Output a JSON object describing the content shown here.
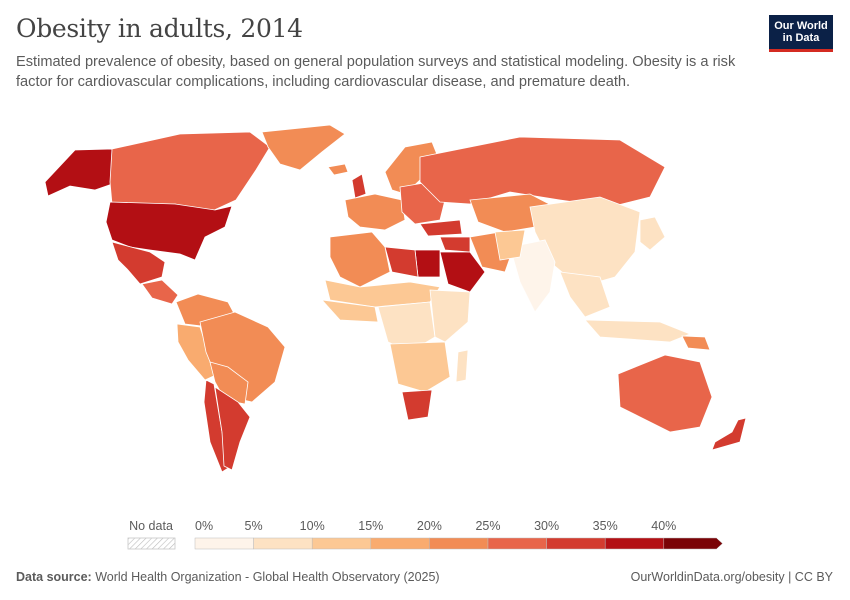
{
  "header": {
    "title": "Obesity in adults, 2014",
    "subtitle": "Estimated prevalence of obesity, based on general population surveys and statistical modeling. Obesity is a risk factor for cardiovascular complications, including cardiovascular disease, and premature death."
  },
  "logo": {
    "line1": "Our World",
    "line2": "in Data"
  },
  "legend": {
    "no_data_label": "No data",
    "ticks": [
      "0%",
      "5%",
      "10%",
      "15%",
      "20%",
      "25%",
      "30%",
      "35%",
      "40%"
    ],
    "bins": [
      {
        "from": 0,
        "to": 5,
        "color": "#fef4ea"
      },
      {
        "from": 5,
        "to": 10,
        "color": "#fde2c3"
      },
      {
        "from": 10,
        "to": 15,
        "color": "#fcc894"
      },
      {
        "from": 15,
        "to": 20,
        "color": "#f9ab6f"
      },
      {
        "from": 20,
        "to": 25,
        "color": "#f28c55"
      },
      {
        "from": 25,
        "to": 30,
        "color": "#e8654a"
      },
      {
        "from": 30,
        "to": 35,
        "color": "#d33b2f"
      },
      {
        "from": 35,
        "to": 40,
        "color": "#b30f14"
      },
      {
        "from": 40,
        "to": 45,
        "color": "#7a0306"
      }
    ]
  },
  "footer": {
    "source_label": "Data source:",
    "source_text": "World Health Organization - Global Health Observatory (2025)",
    "right_text": "OurWorldinData.org/obesity | CC BY"
  },
  "colors": {
    "ocean": "#ffffff",
    "border": "#ffffff",
    "brand_navy": "#0b2147",
    "brand_red": "#d42b21"
  },
  "map_data": {
    "regions": [
      {
        "name": "Alaska",
        "value": 35
      },
      {
        "name": "Canada",
        "value": 27
      },
      {
        "name": "Greenland",
        "value": 21
      },
      {
        "name": "United States",
        "value": 37
      },
      {
        "name": "Mexico",
        "value": 32
      },
      {
        "name": "Central America",
        "value": 26
      },
      {
        "name": "Venezuela / Colombia",
        "value": 22
      },
      {
        "name": "Peru / Ecuador",
        "value": 19
      },
      {
        "name": "Brazil",
        "value": 20
      },
      {
        "name": "Bolivia / Paraguay",
        "value": 21
      },
      {
        "name": "Chile",
        "value": 30
      },
      {
        "name": "Argentina",
        "value": 30
      },
      {
        "name": "Iceland",
        "value": 22
      },
      {
        "name": "Scandinavia",
        "value": 22
      },
      {
        "name": "United Kingdom",
        "value": 30
      },
      {
        "name": "Western Europe",
        "value": 23
      },
      {
        "name": "Eastern Europe",
        "value": 26
      },
      {
        "name": "Russia",
        "value": 26
      },
      {
        "name": "Kazakhstan / Central Asia",
        "value": 20
      },
      {
        "name": "Turkey",
        "value": 30
      },
      {
        "name": "Iran",
        "value": 24
      },
      {
        "name": "Saudi Arabia",
        "value": 37
      },
      {
        "name": "Middle East",
        "value": 33
      },
      {
        "name": "Egypt",
        "value": 37
      },
      {
        "name": "Libya",
        "value": 33
      },
      {
        "name": "Algeria / Morocco",
        "value": 22
      },
      {
        "name": "Sahel",
        "value": 10
      },
      {
        "name": "West Africa",
        "value": 11
      },
      {
        "name": "Central Africa",
        "value": 8
      },
      {
        "name": "East Africa",
        "value": 6
      },
      {
        "name": "Southern Africa",
        "value": 14
      },
      {
        "name": "South Africa",
        "value": 30
      },
      {
        "name": "Madagascar",
        "value": 6
      },
      {
        "name": "Mongolia / China",
        "value": 8
      },
      {
        "name": "India",
        "value": 3
      },
      {
        "name": "Pakistan / Afghanistan",
        "value": 10
      },
      {
        "name": "Japan / Korea",
        "value": 5
      },
      {
        "name": "Southeast Asia",
        "value": 6
      },
      {
        "name": "Indonesia",
        "value": 6
      },
      {
        "name": "Papua New Guinea",
        "value": 20
      },
      {
        "name": "Australia",
        "value": 28
      },
      {
        "name": "New Zealand",
        "value": 30
      }
    ]
  }
}
